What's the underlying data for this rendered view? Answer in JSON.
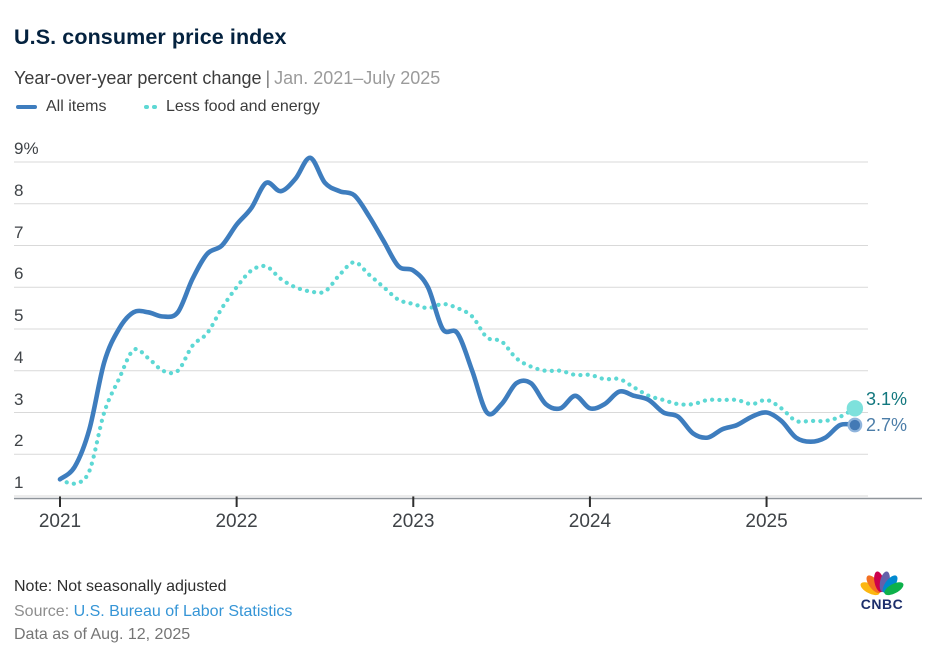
{
  "header": {
    "title": "U.S. consumer price index",
    "subtitle_main": "Year-over-year percent change",
    "subtitle_sep": "|",
    "subtitle_range": "Jan. 2021–July 2025"
  },
  "chart_data": {
    "type": "line",
    "title": "U.S. consumer price index",
    "subtitle": "Year-over-year percent change, Jan. 2021 - July 2025",
    "x_unit": "month",
    "x_start": "2021-01",
    "x_end": "2025-07",
    "ylim": [
      1,
      9
    ],
    "grid": "horizontal",
    "legend_position": "top-left",
    "y_ticks": [
      {
        "label": "9%",
        "value": 9
      },
      {
        "label": "8",
        "value": 8
      },
      {
        "label": "7",
        "value": 7
      },
      {
        "label": "6",
        "value": 6
      },
      {
        "label": "5",
        "value": 5
      },
      {
        "label": "4",
        "value": 4
      },
      {
        "label": "3",
        "value": 3
      },
      {
        "label": "2",
        "value": 2
      },
      {
        "label": "1",
        "value": 1
      }
    ],
    "x_ticks": [
      {
        "label": "2021",
        "month_index": 0
      },
      {
        "label": "2022",
        "month_index": 12
      },
      {
        "label": "2023",
        "month_index": 24
      },
      {
        "label": "2024",
        "month_index": 36
      },
      {
        "label": "2025",
        "month_index": 48
      }
    ],
    "series": [
      {
        "name": "All items",
        "style": "solid",
        "color": "#3E7DBE",
        "dot_fill": "#4379B5",
        "dot_ring": "#8FB4DC",
        "end_label": "2.7%",
        "end_label_color": "#4B7DA8",
        "values": [
          1.4,
          1.7,
          2.6,
          4.2,
          5.0,
          5.4,
          5.4,
          5.3,
          5.4,
          6.2,
          6.8,
          7.0,
          7.5,
          7.9,
          8.5,
          8.3,
          8.6,
          9.1,
          8.5,
          8.3,
          8.2,
          7.7,
          7.1,
          6.5,
          6.4,
          6.0,
          5.0,
          4.9,
          4.0,
          3.0,
          3.2,
          3.7,
          3.7,
          3.2,
          3.1,
          3.4,
          3.1,
          3.2,
          3.5,
          3.4,
          3.3,
          3.0,
          2.9,
          2.5,
          2.4,
          2.6,
          2.7,
          2.9,
          3.0,
          2.8,
          2.4,
          2.3,
          2.4,
          2.7,
          2.7
        ]
      },
      {
        "name": "Less food and energy",
        "style": "dotted",
        "color": "#5DD8D4",
        "dot_fill": "#7EE1DC",
        "dot_ring": "#7EE1DC",
        "end_label": "3.1%",
        "end_label_color": "#12777E",
        "values": [
          1.4,
          1.3,
          1.6,
          3.0,
          3.8,
          4.5,
          4.3,
          4.0,
          4.0,
          4.6,
          4.9,
          5.5,
          6.0,
          6.4,
          6.5,
          6.2,
          6.0,
          5.9,
          5.9,
          6.3,
          6.6,
          6.3,
          6.0,
          5.7,
          5.6,
          5.5,
          5.6,
          5.5,
          5.3,
          4.8,
          4.7,
          4.3,
          4.1,
          4.0,
          4.0,
          3.9,
          3.9,
          3.8,
          3.8,
          3.6,
          3.4,
          3.3,
          3.2,
          3.2,
          3.3,
          3.3,
          3.3,
          3.2,
          3.3,
          3.1,
          2.8,
          2.8,
          2.8,
          2.9,
          3.1
        ]
      }
    ]
  },
  "footer": {
    "note": "Note: Not seasonally adjusted",
    "source_label": "Source:",
    "source_link": "U.S. Bureau of Labor Statistics",
    "data_as_of": "Data as of Aug. 12, 2025"
  },
  "logo": {
    "text": "CNBC",
    "feather_colors": [
      "#FCB711",
      "#F37021",
      "#CC004C",
      "#6460AA",
      "#0089D0",
      "#0DB14B"
    ],
    "wordmark_color": "#1C2E6B"
  }
}
